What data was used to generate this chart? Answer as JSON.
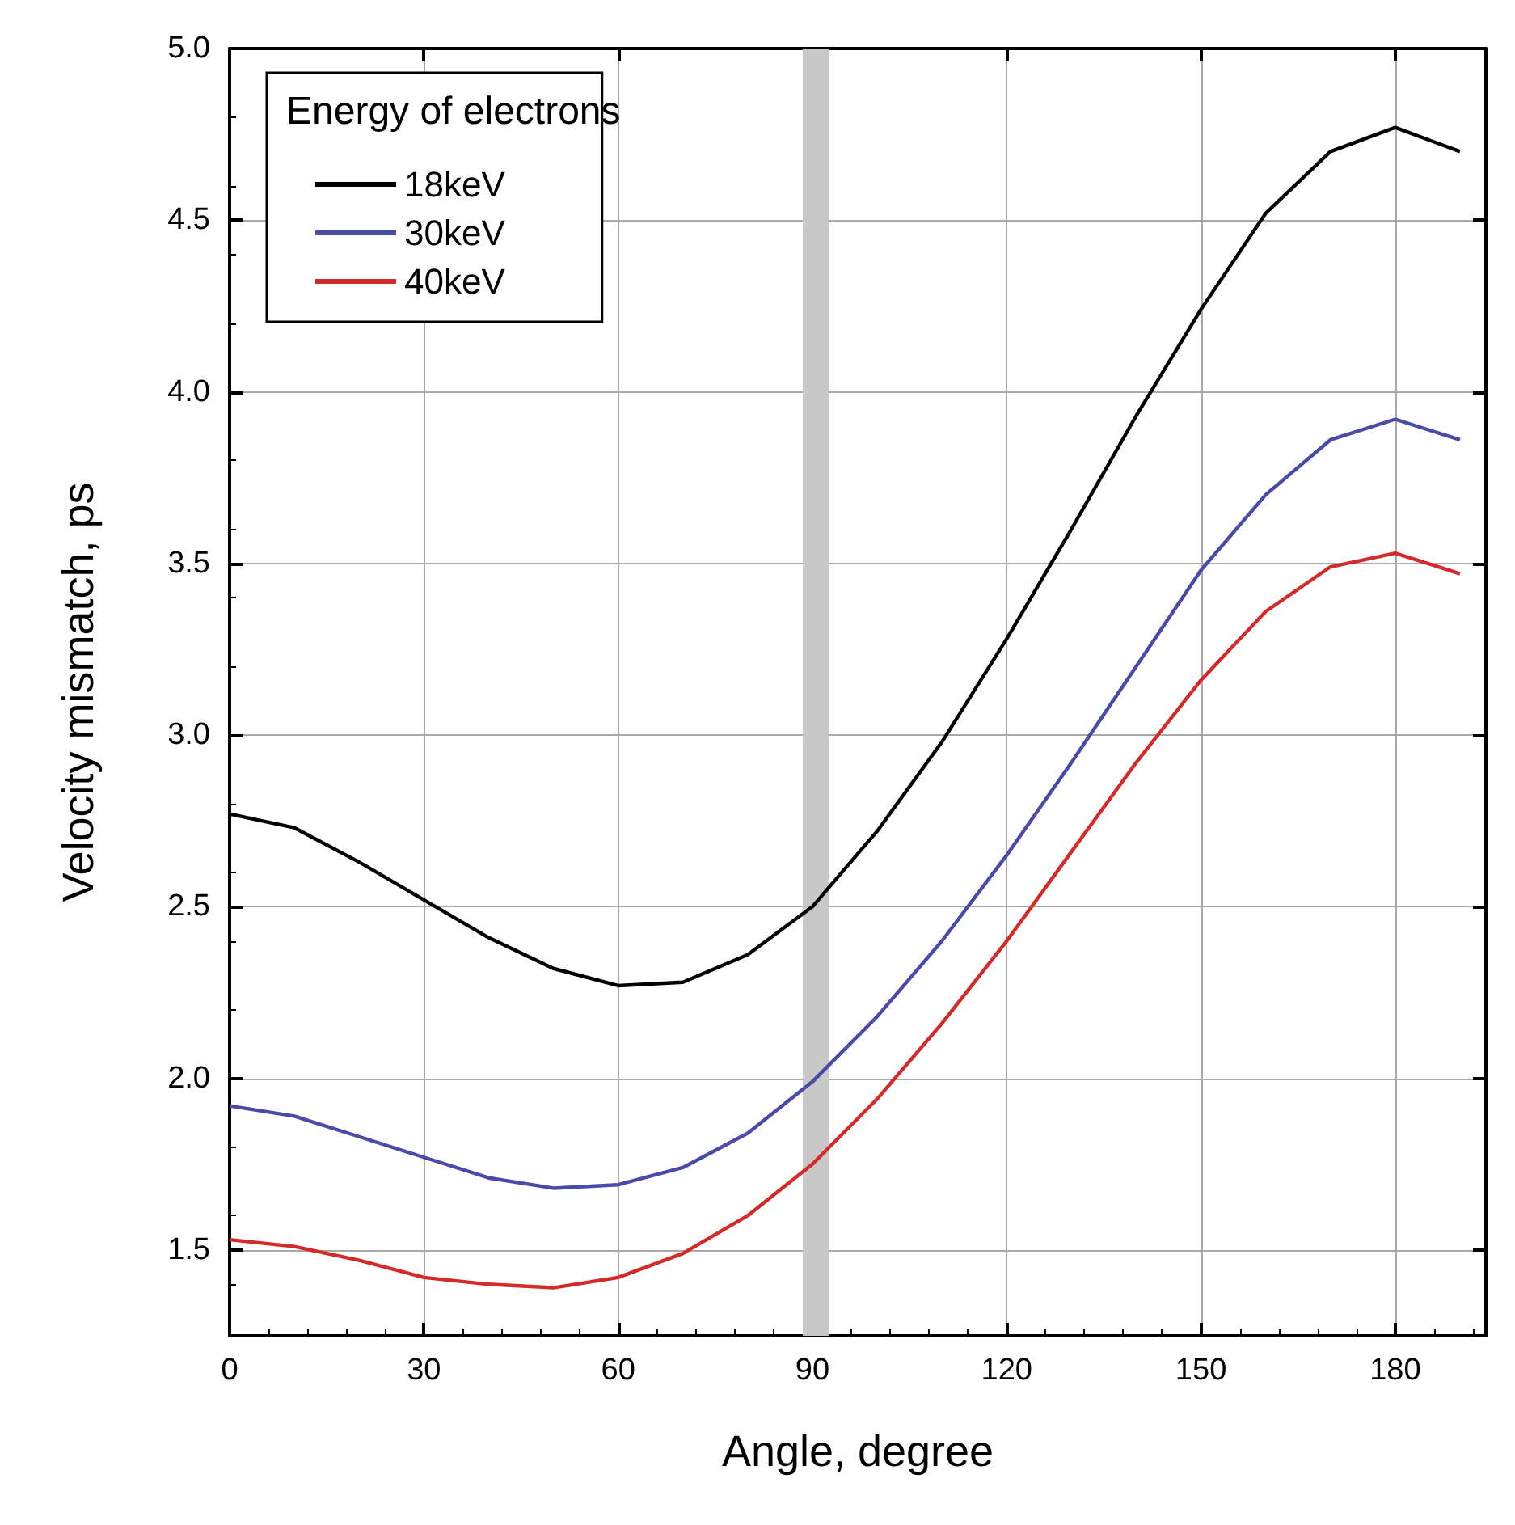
{
  "chart_data": {
    "type": "line",
    "xlabel": "Angle, degree",
    "ylabel": "Velocity mismatch, ps",
    "legend_title": "Energy of electrons",
    "x": [
      0,
      10,
      20,
      30,
      40,
      50,
      60,
      70,
      80,
      90,
      100,
      110,
      120,
      130,
      140,
      150,
      160,
      170,
      180,
      190
    ],
    "series": [
      {
        "name": "18keV",
        "color": "#000000",
        "values": [
          2.77,
          2.73,
          2.63,
          2.52,
          2.41,
          2.32,
          2.27,
          2.28,
          2.36,
          2.5,
          2.72,
          2.98,
          3.28,
          3.6,
          3.93,
          4.24,
          4.52,
          4.7,
          4.77,
          4.7
        ]
      },
      {
        "name": "30keV",
        "color": "#4a4aa8",
        "values": [
          1.92,
          1.89,
          1.83,
          1.77,
          1.71,
          1.68,
          1.69,
          1.74,
          1.84,
          1.99,
          2.18,
          2.4,
          2.65,
          2.92,
          3.2,
          3.48,
          3.7,
          3.86,
          3.92,
          3.86
        ]
      },
      {
        "name": "40keV",
        "color": "#d42a2a",
        "values": [
          1.53,
          1.51,
          1.47,
          1.42,
          1.4,
          1.39,
          1.42,
          1.49,
          1.6,
          1.75,
          1.94,
          2.16,
          2.4,
          2.66,
          2.92,
          3.16,
          3.36,
          3.49,
          3.53,
          3.47
        ]
      }
    ],
    "xlim": [
      0,
      194
    ],
    "xticks": [
      0,
      30,
      60,
      90,
      120,
      150,
      180
    ],
    "ylim": [
      1.25,
      5
    ],
    "yticks": [
      {
        "value": 1.5,
        "label": "1.5"
      },
      {
        "value": 2,
        "label": "2.0"
      },
      {
        "value": 2.5,
        "label": "2.5"
      },
      {
        "value": 3,
        "label": "3.0"
      },
      {
        "value": 3.5,
        "label": "3.5"
      },
      {
        "value": 4,
        "label": "4.0"
      },
      {
        "value": 4.5,
        "label": "4.5"
      },
      {
        "value": 5,
        "label": "5.0"
      }
    ],
    "bands": [
      {
        "axis": "x",
        "from": 88.5,
        "to": 92.5,
        "color": "#c8c8c8"
      }
    ],
    "grid": true,
    "legend": "top left",
    "marker": "none",
    "line_style": "solid"
  }
}
